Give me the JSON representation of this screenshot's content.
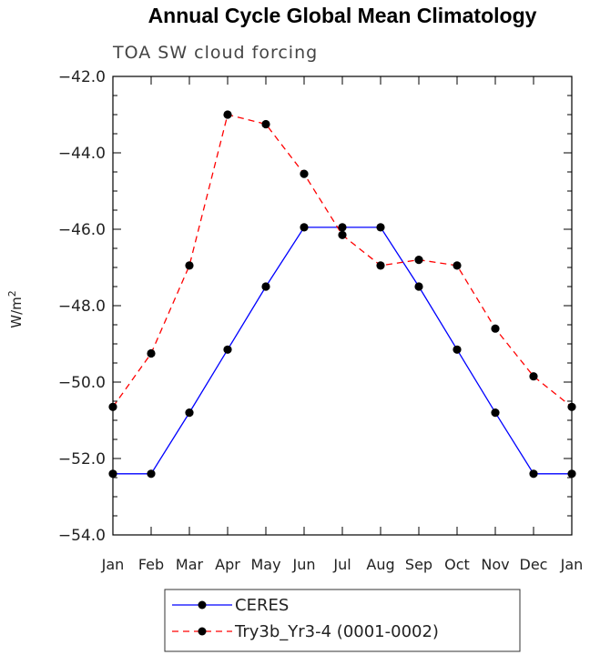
{
  "chart_data": {
    "type": "line",
    "title": "Annual Cycle Global Mean Climatology",
    "subtitle": "TOA SW cloud forcing",
    "ylabel_main": "W/m",
    "ylabel_sup": "2",
    "xlabel": "",
    "ylim": [
      -54.0,
      -42.0
    ],
    "yticks": [
      -42.0,
      -44.0,
      -46.0,
      -48.0,
      -50.0,
      -52.0,
      -54.0
    ],
    "ytick_labels": [
      "−42.0",
      "−44.0",
      "−46.0",
      "−48.0",
      "−50.0",
      "−52.0",
      "−54.0"
    ],
    "categories": [
      "Jan",
      "Feb",
      "Mar",
      "Apr",
      "May",
      "Jun",
      "Jul",
      "Aug",
      "Sep",
      "Oct",
      "Nov",
      "Dec",
      "Jan"
    ],
    "series": [
      {
        "name": "CERES",
        "color": "#0000ff",
        "dash": "solid",
        "values": [
          -52.4,
          -52.4,
          -50.8,
          -49.15,
          -47.5,
          -45.95,
          -45.95,
          -45.95,
          -47.5,
          -49.15,
          -50.8,
          -52.4,
          -52.4
        ]
      },
      {
        "name": "Try3b_Yr3-4 (0001-0002)",
        "color": "#ff0000",
        "dash": "dashed",
        "values": [
          -50.65,
          -49.25,
          -46.95,
          -43.0,
          -43.25,
          -44.55,
          -46.15,
          -46.95,
          -46.8,
          -46.95,
          -48.6,
          -49.85,
          -50.65
        ]
      }
    ]
  }
}
